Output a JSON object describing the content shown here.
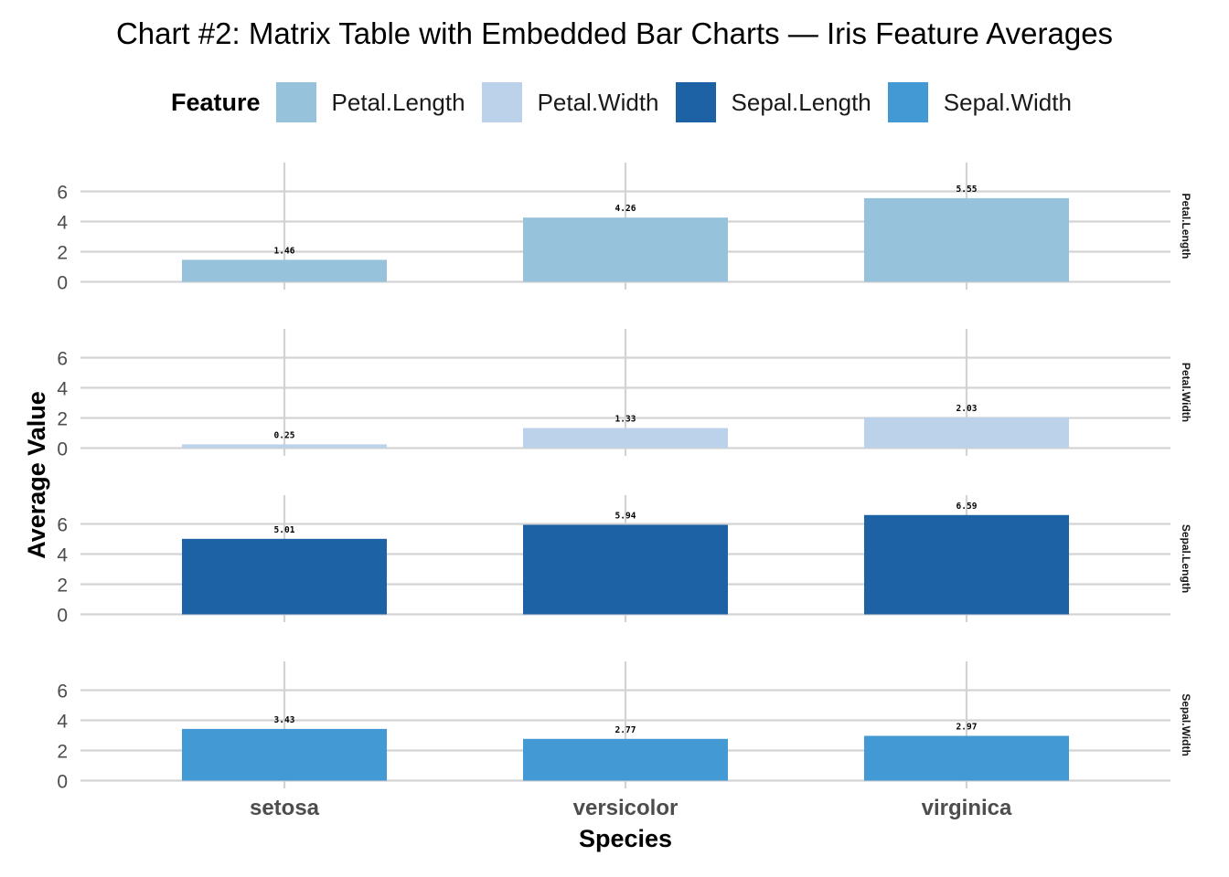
{
  "chart_data": {
    "type": "bar",
    "title": "Chart #2: Matrix Table with Embedded Bar Charts — Iris Feature Averages",
    "xlabel": "Species",
    "ylabel": "Average Value",
    "legend_title": "Feature",
    "legend_position": "top",
    "categories": [
      "setosa",
      "versicolor",
      "virginica"
    ],
    "ylim": [
      0,
      7
    ],
    "yticks": [
      "0",
      "2",
      "4",
      "6"
    ],
    "grid": true,
    "series": [
      {
        "name": "Petal.Length",
        "color": "#96c2dc",
        "values": [
          1.46,
          4.26,
          5.55
        ],
        "labels": [
          "1.46",
          "4.26",
          "5.55"
        ]
      },
      {
        "name": "Petal.Width",
        "color": "#bcd2eb",
        "values": [
          0.25,
          1.33,
          2.03
        ],
        "labels": [
          "0.25",
          "1.33",
          "2.03"
        ]
      },
      {
        "name": "Sepal.Length",
        "color": "#1c62a5",
        "values": [
          5.01,
          5.94,
          6.59
        ],
        "labels": [
          "5.01",
          "5.94",
          "6.59"
        ]
      },
      {
        "name": "Sepal.Width",
        "color": "#4299d3",
        "values": [
          3.43,
          2.77,
          2.97
        ],
        "labels": [
          "3.43",
          "2.77",
          "2.97"
        ]
      }
    ]
  }
}
